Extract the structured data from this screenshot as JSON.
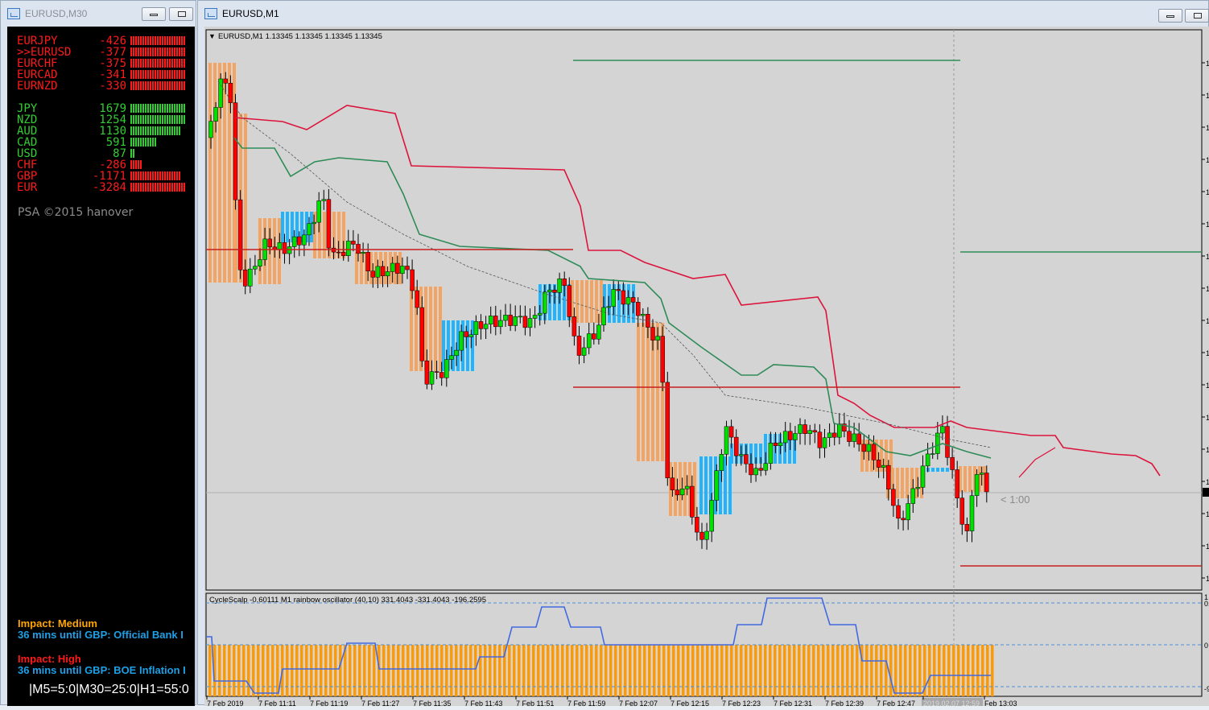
{
  "left_window": {
    "title": "EURUSD,M30",
    "pairs": [
      {
        "name": "EURJPY",
        "value": "-426",
        "strength": 1.0
      },
      {
        "name": ">>EURUSD",
        "value": "-377",
        "strength": 1.0
      },
      {
        "name": "EURCHF",
        "value": "-375",
        "strength": 1.0
      },
      {
        "name": "EURCAD",
        "value": "-341",
        "strength": 1.0
      },
      {
        "name": "EURNZD",
        "value": "-330",
        "strength": 1.0
      }
    ],
    "currencies": [
      {
        "name": "JPY",
        "value": "1679",
        "strength": 1.0,
        "color": "green"
      },
      {
        "name": "NZD",
        "value": "1254",
        "strength": 1.0,
        "color": "green"
      },
      {
        "name": "AUD",
        "value": "1130",
        "strength": 0.92,
        "color": "green"
      },
      {
        "name": "CAD",
        "value": "591",
        "strength": 0.48,
        "color": "green"
      },
      {
        "name": "USD",
        "value": "87",
        "strength": 0.08,
        "color": "green"
      },
      {
        "name": "CHF",
        "value": "-286",
        "strength": 0.22,
        "color": "red"
      },
      {
        "name": "GBP",
        "value": "-1171",
        "strength": 0.92,
        "color": "red"
      },
      {
        "name": "EUR",
        "value": "-3284",
        "strength": 1.0,
        "color": "red"
      }
    ],
    "copyright": "PSA ©2015 hanover",
    "news": [
      {
        "impact": "Impact: Medium",
        "impact_color": "#ffa500",
        "text": "36 mins until GBP: Official Bank I"
      },
      {
        "impact": "Impact: High",
        "impact_color": "#ff1a1a",
        "text": "36 mins until GBP: BOE Inflation I"
      }
    ],
    "timer": "|M5=5:0|M30=25:0|H1=55:0"
  },
  "right_window": {
    "title": "EURUSD,M1",
    "chart_header": "EURUSD,M1  1.13345 1.13345 1.13345 1.13345",
    "countdown": "< 1:00",
    "indicator_label": "CycleScalp -0.60111  M1 rainbow oscillator (40,10) 331.4043 -331.4043 -196.2595",
    "price_tick": "1",
    "osc_ticks": [
      "1",
      "0.",
      "0",
      "-9"
    ],
    "time_labels": [
      "7 Feb 2019",
      "7 Feb 11:11",
      "7 Feb 11:19",
      "7 Feb 11:27",
      "7 Feb 11:35",
      "7 Feb 11:43",
      "7 Feb 11:51",
      "7 Feb 11:59",
      "7 Feb 12:07",
      "7 Feb 12:15",
      "7 Feb 12:23",
      "7 Feb 12:31",
      "7 Feb 12:39",
      "7 Feb 12:47",
      "2019.02.07 12:59",
      "Feb 13:03"
    ],
    "colors": {
      "bull": "#00e000",
      "bear": "#ff0000",
      "orange": "#f4a460",
      "blue": "#1eb4ff",
      "ma_red": "#dc143c",
      "ma_green": "#2e8b57",
      "osc_orange": "#ff9900",
      "osc_line": "#4169e1"
    }
  }
}
